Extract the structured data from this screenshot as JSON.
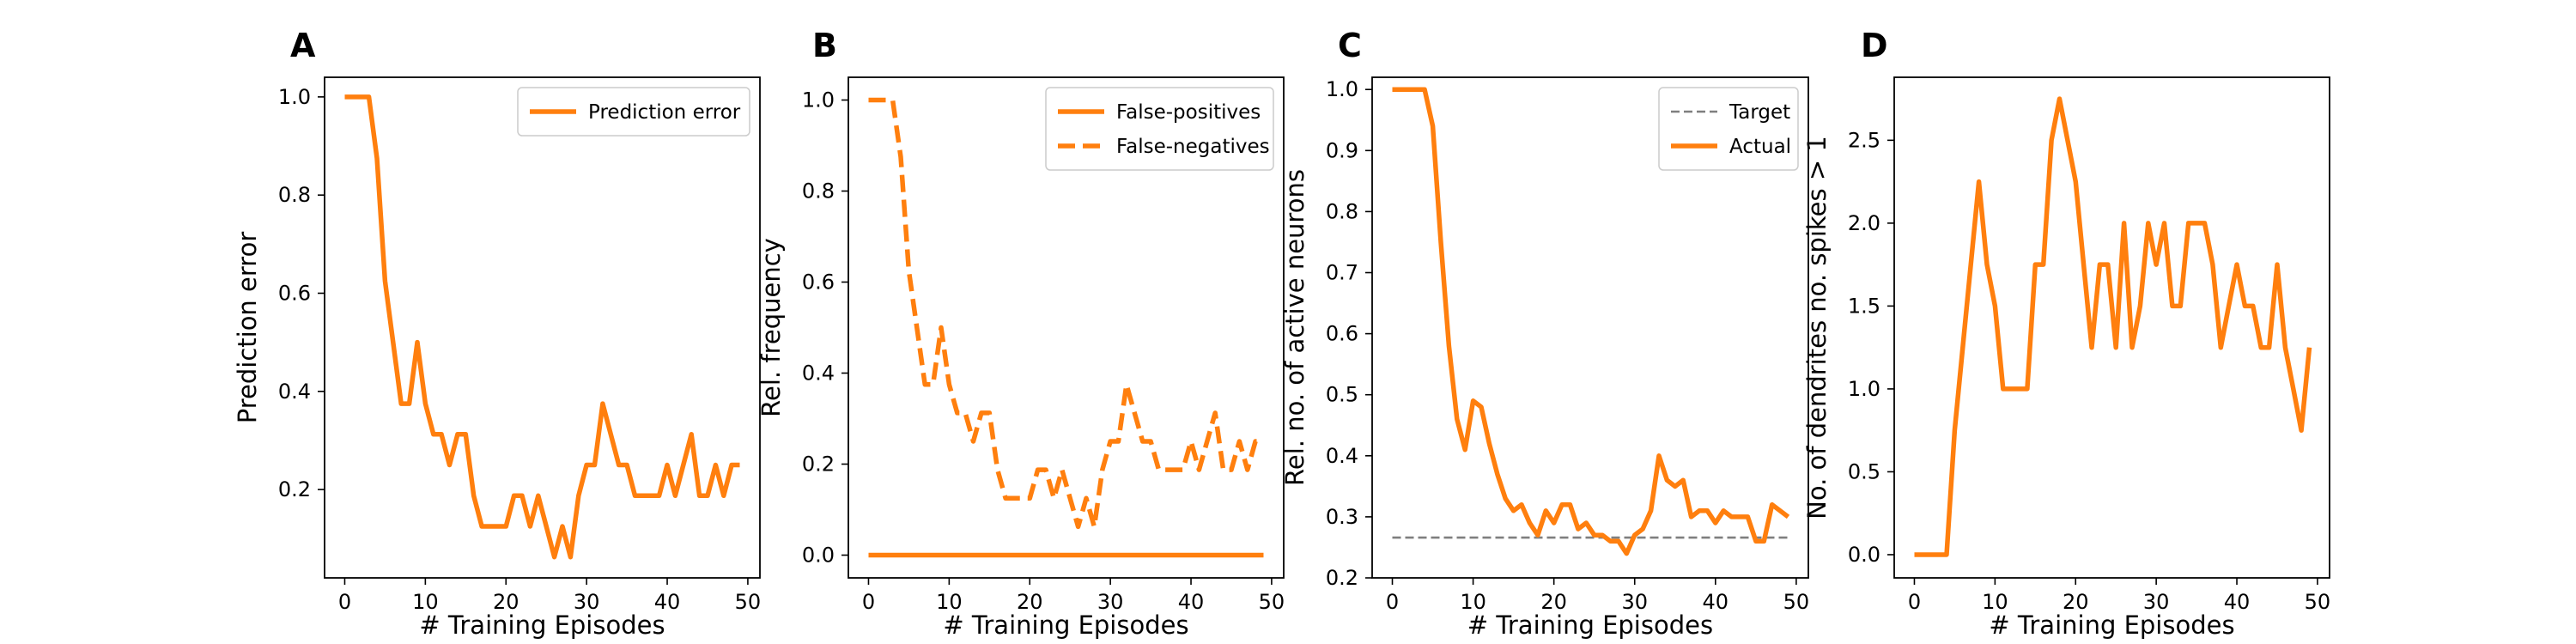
{
  "figure": {
    "panels_note": "four line charts"
  },
  "chart_data": [
    {
      "type": "line",
      "panel_letter": "A",
      "xlabel": "# Training Episodes",
      "ylabel": "Prediction error",
      "xlim": [
        -2.5,
        51.5
      ],
      "ylim": [
        0.02,
        1.04
      ],
      "xticks": [
        0,
        10,
        20,
        30,
        40,
        50
      ],
      "yticks": [
        0.2,
        0.4,
        0.6,
        0.8,
        1.0
      ],
      "ytick_labels": [
        "0.2",
        "0.4",
        "0.6",
        "0.8",
        "1.0"
      ],
      "legend_position": "top-right",
      "series": [
        {
          "name": "Prediction error",
          "color": "#ff7f0e",
          "dash": "solid",
          "x": [
            0,
            1,
            2,
            3,
            4,
            5,
            6,
            7,
            8,
            9,
            10,
            11,
            12,
            13,
            14,
            15,
            16,
            17,
            18,
            19,
            20,
            21,
            22,
            23,
            24,
            25,
            26,
            27,
            28,
            29,
            30,
            31,
            32,
            33,
            34,
            35,
            36,
            37,
            38,
            39,
            40,
            41,
            42,
            43,
            44,
            45,
            46,
            47,
            48,
            49
          ],
          "y": [
            1.0,
            1.0,
            1.0,
            1.0,
            0.875,
            0.625,
            0.5,
            0.375,
            0.375,
            0.5,
            0.375,
            0.3125,
            0.3125,
            0.25,
            0.3125,
            0.3125,
            0.1875,
            0.125,
            0.125,
            0.125,
            0.125,
            0.1875,
            0.1875,
            0.125,
            0.1875,
            0.125,
            0.0625,
            0.125,
            0.0625,
            0.1875,
            0.25,
            0.25,
            0.375,
            0.3125,
            0.25,
            0.25,
            0.1875,
            0.1875,
            0.1875,
            0.1875,
            0.25,
            0.1875,
            0.25,
            0.3125,
            0.1875,
            0.1875,
            0.25,
            0.1875,
            0.25,
            0.25
          ]
        }
      ]
    },
    {
      "type": "line",
      "panel_letter": "B",
      "xlabel": "# Training Episodes",
      "ylabel": "Rel. frequency",
      "xlim": [
        -2.5,
        51.5
      ],
      "ylim": [
        -0.05,
        1.05
      ],
      "xticks": [
        0,
        10,
        20,
        30,
        40,
        50
      ],
      "yticks": [
        0.0,
        0.2,
        0.4,
        0.6,
        0.8,
        1.0
      ],
      "ytick_labels": [
        "0.0",
        "0.2",
        "0.4",
        "0.6",
        "0.8",
        "1.0"
      ],
      "legend_position": "top-right",
      "series": [
        {
          "name": "False-positives",
          "color": "#ff7f0e",
          "dash": "solid",
          "x": [
            0,
            1,
            2,
            3,
            4,
            5,
            6,
            7,
            8,
            9,
            10,
            11,
            12,
            13,
            14,
            15,
            16,
            17,
            18,
            19,
            20,
            21,
            22,
            23,
            24,
            25,
            26,
            27,
            28,
            29,
            30,
            31,
            32,
            33,
            34,
            35,
            36,
            37,
            38,
            39,
            40,
            41,
            42,
            43,
            44,
            45,
            46,
            47,
            48,
            49
          ],
          "y": [
            0,
            0,
            0,
            0,
            0,
            0,
            0,
            0,
            0,
            0,
            0,
            0,
            0,
            0,
            0,
            0,
            0,
            0,
            0,
            0,
            0,
            0,
            0,
            0,
            0,
            0,
            0,
            0,
            0,
            0,
            0,
            0,
            0,
            0,
            0,
            0,
            0,
            0,
            0,
            0,
            0,
            0,
            0,
            0,
            0,
            0,
            0,
            0,
            0,
            0
          ]
        },
        {
          "name": "False-negatives",
          "color": "#ff7f0e",
          "dash": "dashed",
          "x": [
            0,
            1,
            2,
            3,
            4,
            5,
            6,
            7,
            8,
            9,
            10,
            11,
            12,
            13,
            14,
            15,
            16,
            17,
            18,
            19,
            20,
            21,
            22,
            23,
            24,
            25,
            26,
            27,
            28,
            29,
            30,
            31,
            32,
            33,
            34,
            35,
            36,
            37,
            38,
            39,
            40,
            41,
            42,
            43,
            44,
            45,
            46,
            47,
            48,
            49
          ],
          "y": [
            1.0,
            1.0,
            1.0,
            1.0,
            0.875,
            0.625,
            0.5,
            0.375,
            0.375,
            0.5,
            0.375,
            0.3125,
            0.3125,
            0.25,
            0.3125,
            0.3125,
            0.1875,
            0.125,
            0.125,
            0.125,
            0.125,
            0.1875,
            0.1875,
            0.125,
            0.1875,
            0.125,
            0.0625,
            0.125,
            0.0625,
            0.1875,
            0.25,
            0.25,
            0.375,
            0.3125,
            0.25,
            0.25,
            0.1875,
            0.1875,
            0.1875,
            0.1875,
            0.25,
            0.1875,
            0.25,
            0.3125,
            0.1875,
            0.1875,
            0.25,
            0.1875,
            0.25,
            0.25
          ]
        }
      ]
    },
    {
      "type": "line",
      "panel_letter": "C",
      "xlabel": "# Training Episodes",
      "ylabel": "Rel. no. of active neurons",
      "xlim": [
        -2.5,
        51.5
      ],
      "ylim": [
        0.2,
        1.02
      ],
      "xticks": [
        0,
        10,
        20,
        30,
        40,
        50
      ],
      "yticks": [
        0.2,
        0.3,
        0.4,
        0.5,
        0.6,
        0.7,
        0.8,
        0.9,
        1.0
      ],
      "ytick_labels": [
        "0.2",
        "0.3",
        "0.4",
        "0.5",
        "0.6",
        "0.7",
        "0.8",
        "0.9",
        "1.0"
      ],
      "legend_position": "top-right",
      "series": [
        {
          "name": "Target",
          "color": "#7f7f7f",
          "dash": "dashed",
          "x": [
            0,
            49
          ],
          "y": [
            0.266,
            0.266
          ]
        },
        {
          "name": "Actual",
          "color": "#ff7f0e",
          "dash": "solid",
          "x": [
            0,
            1,
            2,
            3,
            4,
            5,
            6,
            7,
            8,
            9,
            10,
            11,
            12,
            13,
            14,
            15,
            16,
            17,
            18,
            19,
            20,
            21,
            22,
            23,
            24,
            25,
            26,
            27,
            28,
            29,
            30,
            31,
            32,
            33,
            34,
            35,
            36,
            37,
            38,
            39,
            40,
            41,
            42,
            43,
            44,
            45,
            46,
            47,
            48,
            49
          ],
          "y": [
            1.0,
            1.0,
            1.0,
            1.0,
            1.0,
            0.94,
            0.75,
            0.58,
            0.46,
            0.41,
            0.49,
            0.48,
            0.42,
            0.37,
            0.33,
            0.31,
            0.32,
            0.29,
            0.27,
            0.31,
            0.29,
            0.32,
            0.32,
            0.28,
            0.29,
            0.27,
            0.27,
            0.26,
            0.26,
            0.24,
            0.27,
            0.28,
            0.31,
            0.4,
            0.36,
            0.35,
            0.36,
            0.3,
            0.31,
            0.31,
            0.29,
            0.31,
            0.3,
            0.3,
            0.3,
            0.26,
            0.26,
            0.32,
            0.31,
            0.3
          ]
        }
      ]
    },
    {
      "type": "line",
      "panel_letter": "D",
      "xlabel": "# Training Episodes",
      "ylabel": "No. of dendrites no. spikes > 1",
      "xlim": [
        -2.5,
        51.5
      ],
      "ylim": [
        -0.14,
        2.88
      ],
      "xticks": [
        0,
        10,
        20,
        30,
        40,
        50
      ],
      "yticks": [
        0.0,
        0.5,
        1.0,
        1.5,
        2.0,
        2.5
      ],
      "ytick_labels": [
        "0.0",
        "0.5",
        "1.0",
        "1.5",
        "2.0",
        "2.5"
      ],
      "legend_position": "none",
      "series": [
        {
          "name": "",
          "color": "#ff7f0e",
          "dash": "solid",
          "x": [
            0,
            1,
            2,
            3,
            4,
            5,
            6,
            7,
            8,
            9,
            10,
            11,
            12,
            13,
            14,
            15,
            16,
            17,
            18,
            19,
            20,
            21,
            22,
            23,
            24,
            25,
            26,
            27,
            28,
            29,
            30,
            31,
            32,
            33,
            34,
            35,
            36,
            37,
            38,
            39,
            40,
            41,
            42,
            43,
            44,
            45,
            46,
            47,
            48,
            49
          ],
          "y": [
            0,
            0,
            0,
            0,
            0,
            0.75,
            1.25,
            1.75,
            2.25,
            1.75,
            1.5,
            1.0,
            1.0,
            1.0,
            1.0,
            1.75,
            1.75,
            2.5,
            2.75,
            2.5,
            2.25,
            1.75,
            1.25,
            1.75,
            1.75,
            1.25,
            2.0,
            1.25,
            1.5,
            2.0,
            1.75,
            2.0,
            1.5,
            1.5,
            2.0,
            2.0,
            2.0,
            1.75,
            1.25,
            1.5,
            1.75,
            1.5,
            1.5,
            1.25,
            1.25,
            1.75,
            1.25,
            1.0,
            0.75,
            1.25
          ]
        }
      ]
    }
  ],
  "colors": {
    "accent": "#ff7f0e",
    "target": "#7f7f7f",
    "axis": "#000000",
    "background": "#ffffff"
  }
}
